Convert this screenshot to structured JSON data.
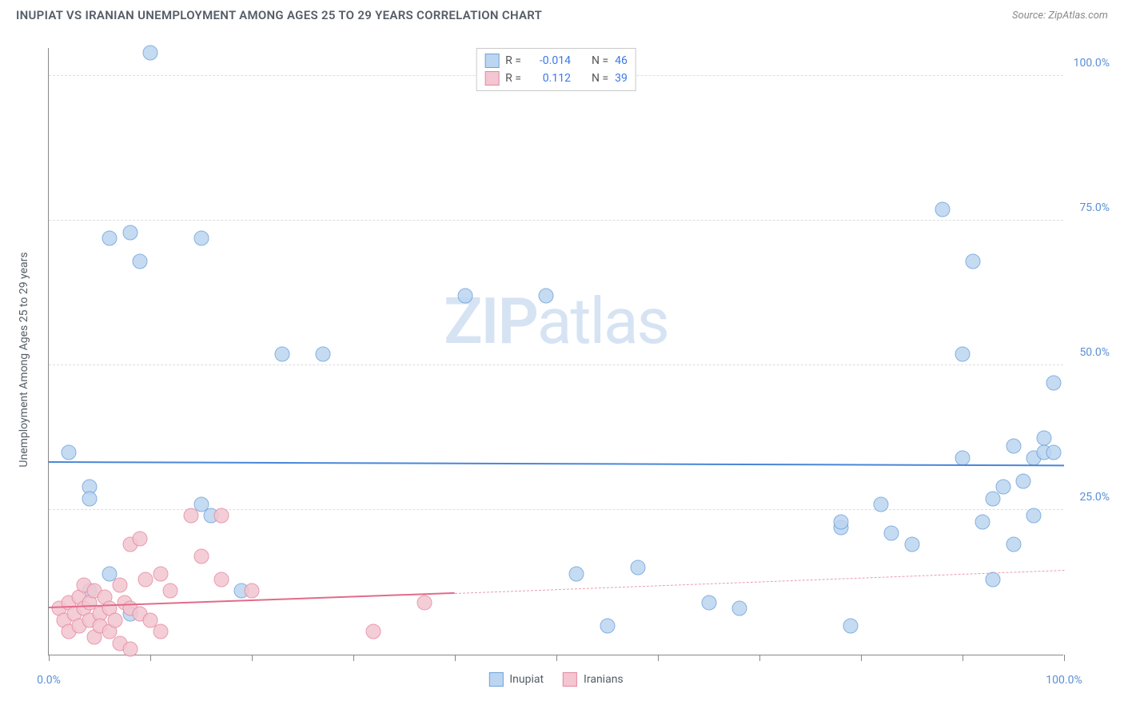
{
  "header": {
    "title": "INUPIAT VS IRANIAN UNEMPLOYMENT AMONG AGES 25 TO 29 YEARS CORRELATION CHART",
    "source": "Source: ZipAtlas.com"
  },
  "chart": {
    "type": "scatter",
    "ylabel": "Unemployment Among Ages 25 to 29 years",
    "watermark_a": "ZIP",
    "watermark_b": "atlas",
    "background_color": "#ffffff",
    "grid_color": "#dddddd",
    "axis_color": "#888888",
    "label_color": "#5a8fd6",
    "xlim": [
      0,
      100
    ],
    "ylim": [
      0,
      105
    ],
    "x_axis_labels": [
      {
        "pos": 0,
        "text": "0.0%"
      },
      {
        "pos": 100,
        "text": "100.0%"
      }
    ],
    "x_ticks": [
      0,
      10,
      20,
      30,
      40,
      50,
      60,
      70,
      80,
      90,
      100
    ],
    "y_gridlines": [
      25,
      50,
      75,
      100
    ],
    "y_axis_labels": [
      {
        "pos": 25,
        "text": "25.0%"
      },
      {
        "pos": 50,
        "text": "50.0%"
      },
      {
        "pos": 75,
        "text": "75.0%"
      },
      {
        "pos": 100,
        "text": "100.0%"
      }
    ],
    "point_radius": 9.5,
    "point_stroke_width": 1.5,
    "point_fill_opacity": 0.28,
    "series": [
      {
        "key": "inupiat",
        "label": "Inupiat",
        "color_stroke": "#6fa3db",
        "color_fill": "#bcd5f0",
        "r_value": "-0.014",
        "n_value": "46",
        "trend": {
          "y_at_x0": 33.2,
          "y_at_x100": 32.6,
          "color": "#4a86d8",
          "width": 2.5
        },
        "points": [
          [
            10,
            104
          ],
          [
            6,
            72
          ],
          [
            8,
            73
          ],
          [
            9,
            68
          ],
          [
            15,
            72
          ],
          [
            2,
            35
          ],
          [
            4,
            29
          ],
          [
            4,
            27
          ],
          [
            4,
            11
          ],
          [
            6,
            14
          ],
          [
            8,
            7
          ],
          [
            15,
            26
          ],
          [
            16,
            24
          ],
          [
            19,
            11
          ],
          [
            23,
            52
          ],
          [
            27,
            52
          ],
          [
            41,
            62
          ],
          [
            49,
            62
          ],
          [
            52,
            14
          ],
          [
            55,
            5
          ],
          [
            58,
            15
          ],
          [
            65,
            9
          ],
          [
            68,
            8
          ],
          [
            78,
            22
          ],
          [
            78,
            23
          ],
          [
            79,
            5
          ],
          [
            82,
            26
          ],
          [
            83,
            21
          ],
          [
            85,
            19
          ],
          [
            88,
            77
          ],
          [
            90,
            34
          ],
          [
            90,
            52
          ],
          [
            91,
            68
          ],
          [
            92,
            23
          ],
          [
            93,
            13
          ],
          [
            93,
            27
          ],
          [
            94,
            29
          ],
          [
            95,
            19
          ],
          [
            95,
            36
          ],
          [
            96,
            30
          ],
          [
            97,
            24
          ],
          [
            97,
            34
          ],
          [
            98,
            37.5
          ],
          [
            98,
            35
          ],
          [
            99,
            35
          ],
          [
            99,
            47
          ]
        ]
      },
      {
        "key": "iranians",
        "label": "Iranians",
        "color_stroke": "#e48aa0",
        "color_fill": "#f3c6d1",
        "r_value": "0.112",
        "n_value": "39",
        "trend_solid": {
          "x0": 0,
          "x1": 40,
          "y0": 8.0,
          "y1": 10.5,
          "color": "#e26b8a",
          "width": 2.5
        },
        "trend_dash": {
          "x0": 40,
          "x1": 100,
          "y0": 10.5,
          "y1": 14.5,
          "color": "#e69db0",
          "width": 1.5
        },
        "points": [
          [
            1,
            8
          ],
          [
            1.5,
            6
          ],
          [
            2,
            9
          ],
          [
            2,
            4
          ],
          [
            2.5,
            7
          ],
          [
            3,
            10
          ],
          [
            3,
            5
          ],
          [
            3.5,
            8
          ],
          [
            3.5,
            12
          ],
          [
            4,
            6
          ],
          [
            4,
            9
          ],
          [
            4.5,
            3
          ],
          [
            4.5,
            11
          ],
          [
            5,
            7
          ],
          [
            5,
            5
          ],
          [
            5.5,
            10
          ],
          [
            6,
            8
          ],
          [
            6,
            4
          ],
          [
            6.5,
            6
          ],
          [
            7,
            12
          ],
          [
            7,
            2
          ],
          [
            7.5,
            9
          ],
          [
            8,
            8
          ],
          [
            8,
            19
          ],
          [
            8,
            1
          ],
          [
            9,
            7
          ],
          [
            9,
            20
          ],
          [
            9.5,
            13
          ],
          [
            10,
            6
          ],
          [
            11,
            14
          ],
          [
            11,
            4
          ],
          [
            12,
            11
          ],
          [
            14,
            24
          ],
          [
            15,
            17
          ],
          [
            17,
            13
          ],
          [
            17,
            24
          ],
          [
            20,
            11
          ],
          [
            32,
            4
          ],
          [
            37,
            9
          ]
        ]
      }
    ],
    "r_legend": {
      "r_label": "R =",
      "n_label": "N ="
    }
  }
}
